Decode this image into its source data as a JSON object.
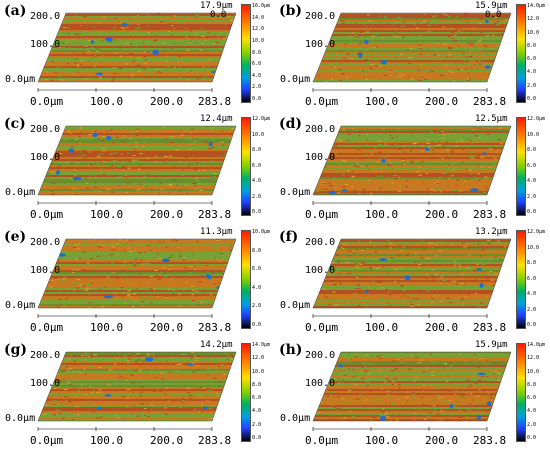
{
  "panels": [
    {
      "label": "(a)",
      "zmax": "17.9μm",
      "zmin": "0.0",
      "yticks": [
        "200.0",
        "100.0",
        "0.0μm"
      ],
      "xticks": [
        "0.0μm",
        "100.0",
        "200.0",
        "283.8"
      ],
      "colorbar_ticks": [
        "16.0μm",
        "14.0",
        "12.0",
        "10.0",
        "8.0",
        "6.0",
        "4.0",
        "2.0",
        "0.0"
      ]
    },
    {
      "label": "(b)",
      "zmax": "15.9μm",
      "zmin": "0.0",
      "yticks": [
        "200.0",
        "100.0",
        "0.0μm"
      ],
      "xticks": [
        "0.0μm",
        "100.0",
        "200.0",
        "283.8"
      ],
      "colorbar_ticks": [
        "14.0μm",
        "12.0",
        "10.0",
        "8.0",
        "6.0",
        "4.0",
        "2.0",
        "0.0"
      ]
    },
    {
      "label": "(c)",
      "zmax": "12.4μm",
      "zmin": "",
      "yticks": [
        "200.0",
        "100.0",
        "0.0μm"
      ],
      "xticks": [
        "0.0μm",
        "100.0",
        "200.0",
        "283.8"
      ],
      "colorbar_ticks": [
        "12.0μm",
        "10.0",
        "8.0",
        "6.0",
        "4.0",
        "2.0",
        "0.0"
      ]
    },
    {
      "label": "(d)",
      "zmax": "12.5μm",
      "zmin": "",
      "yticks": [
        "200.0",
        "100.0",
        "0.0μm"
      ],
      "xticks": [
        "0.0μm",
        "100.0",
        "200.0",
        "283.8"
      ],
      "colorbar_ticks": [
        "12.0μm",
        "10.0",
        "8.0",
        "6.0",
        "4.0",
        "2.0",
        "0.0"
      ]
    },
    {
      "label": "(e)",
      "zmax": "11.3μm",
      "zmin": "",
      "yticks": [
        "200.0",
        "100.0",
        "0.0μm"
      ],
      "xticks": [
        "0.0μm",
        "100.0",
        "200.0",
        "283.8"
      ],
      "colorbar_ticks": [
        "10.0μm",
        "8.0",
        "6.0",
        "4.0",
        "2.0",
        "0.0"
      ]
    },
    {
      "label": "(f)",
      "zmax": "13.2μm",
      "zmin": "",
      "yticks": [
        "200.0",
        "100.0",
        "0.0μm"
      ],
      "xticks": [
        "0.0μm",
        "100.0",
        "200.0",
        "283.8"
      ],
      "colorbar_ticks": [
        "12.0μm",
        "10.0",
        "8.0",
        "6.0",
        "4.0",
        "2.0",
        "0.0"
      ]
    },
    {
      "label": "(g)",
      "zmax": "14.2μm",
      "zmin": "",
      "yticks": [
        "200.0",
        "100.0",
        "0.0μm"
      ],
      "xticks": [
        "0.0μm",
        "100.0",
        "200.0",
        "283.8"
      ],
      "colorbar_ticks": [
        "14.0μm",
        "12.0",
        "10.0",
        "8.0",
        "6.0",
        "4.0",
        "2.0",
        "0.0"
      ]
    },
    {
      "label": "(h)",
      "zmax": "15.9μm",
      "zmin": "",
      "yticks": [
        "200.0",
        "100.0",
        "0.0μm"
      ],
      "xticks": [
        "0.0μm",
        "100.0",
        "200.0",
        "283.8"
      ],
      "colorbar_ticks": [
        "14.0μm",
        "12.0",
        "10.0",
        "8.0",
        "6.0",
        "4.0",
        "2.0",
        "0.0"
      ]
    }
  ],
  "colors": {
    "surface_red": "#b04a22",
    "surface_orange": "#c8781e",
    "surface_green": "#6aa83a",
    "surface_blue": "#1a6fd0"
  }
}
